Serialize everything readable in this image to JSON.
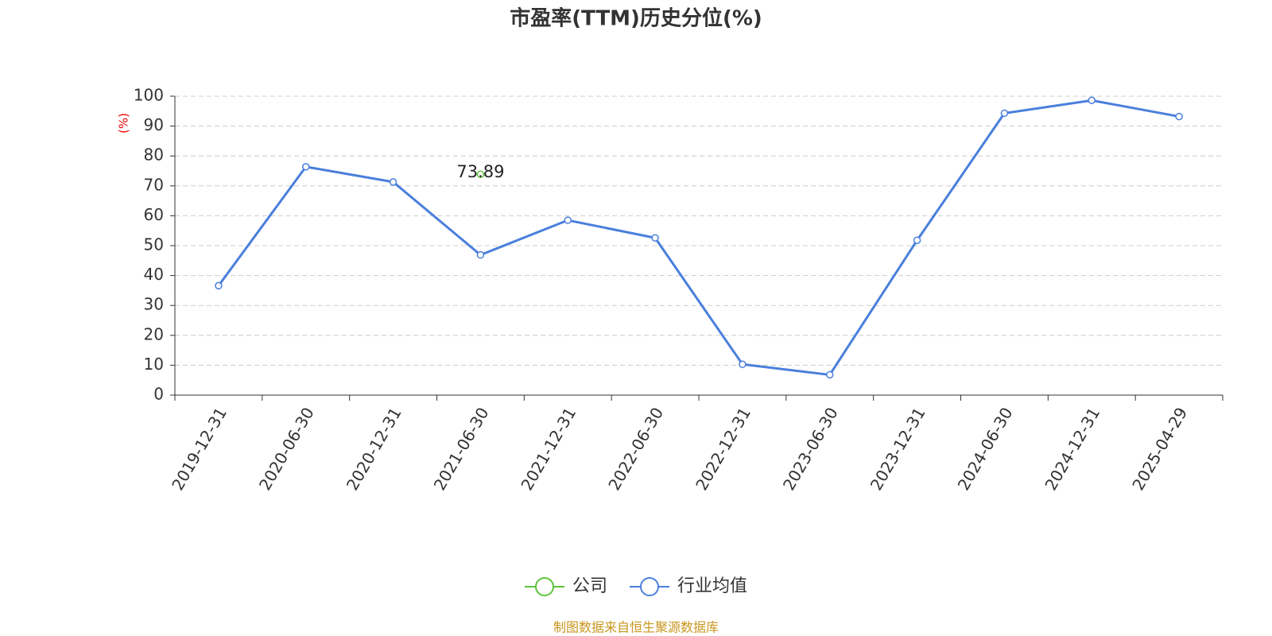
{
  "chart_data": {
    "type": "line",
    "title": "市盈率(TTM)历史分位(%)",
    "y_label": "(%)",
    "categories": [
      "2019-12-31",
      "2020-06-30",
      "2020-12-31",
      "2021-06-30",
      "2021-12-31",
      "2022-06-30",
      "2022-12-31",
      "2023-06-30",
      "2023-12-31",
      "2024-06-30",
      "2024-12-31",
      "2025-04-29"
    ],
    "series": [
      {
        "name": "公司",
        "color": "#5cc43a",
        "show_labels": true,
        "values": [
          null,
          null,
          null,
          73.89,
          null,
          null,
          null,
          null,
          null,
          null,
          null,
          null
        ]
      },
      {
        "name": "行业均值",
        "color": "#4a7fdc",
        "show_labels": false,
        "values": [
          36.6,
          76.4,
          71.3,
          46.9,
          58.5,
          52.6,
          10.3,
          6.8,
          51.8,
          94.3,
          98.6,
          93.2
        ]
      }
    ],
    "ylim": [
      0,
      100
    ],
    "yticks": [
      0,
      10,
      20,
      30,
      40,
      50,
      60,
      70,
      80,
      90,
      100
    ],
    "grid": true,
    "legend": "bottom",
    "source": "制图数据来自恒生聚源数据库"
  }
}
